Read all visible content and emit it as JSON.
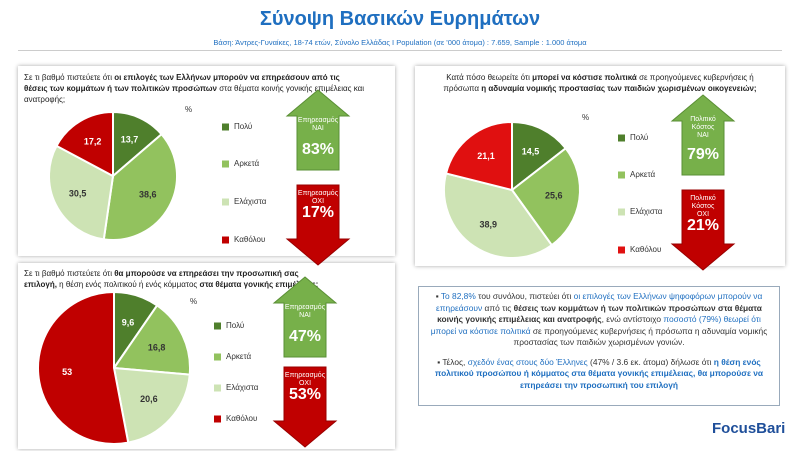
{
  "header": {
    "title": "Σύνοψη Βασικών Ευρημάτων",
    "subtitle": "Βάση: Άντρες-Γυναίκες, 18-74 ετών, Σύνολο Ελλάδας Ι Population (σε '000 άτομα) : 7.659, Sample : 1.000 άτομα"
  },
  "chart_data": [
    {
      "type": "pie",
      "question": [
        "Σε τι βαθμό πιστεύετε ότι ",
        "οι επιλογές των Ελλήνων μπορούν να επηρεάσουν από τις θέσεις των κομμάτων ή των πολιτικών προσώπων",
        " στα θέματα κοινής γονικής επιμέλειας και ανατροφής;"
      ],
      "unit": "%",
      "categories": [
        "Πολύ",
        "Αρκετά",
        "Ελάχιστα",
        "Καθόλου"
      ],
      "values": [
        13.7,
        38.6,
        30.5,
        17.2
      ],
      "value_labels": [
        "13,7",
        "38,6",
        "30,5",
        "17,2"
      ],
      "colors": [
        "#4f7f2c",
        "#92c25e",
        "#cde3b4",
        "#c00000"
      ],
      "yes_label": [
        "Επηρεασμός",
        "ΝΑΙ"
      ],
      "yes_value": "83%",
      "no_label": [
        "Επηρεασμός",
        "ΟΧΙ"
      ],
      "no_value": "17%"
    },
    {
      "type": "pie",
      "question": [
        "Κατά πόσο θεωρείτε ότι ",
        "μπορεί να κόστισε πολιτικά",
        " σε προηγούμενες κυβερνήσεις ή πρόσωπα ",
        "η αδυναμία νομικής προστασίας των παιδιών χωρισμένων οικογενειών;"
      ],
      "unit": "%",
      "categories": [
        "Πολύ",
        "Αρκετά",
        "Ελάχιστα",
        "Καθόλου"
      ],
      "values": [
        14.5,
        25.6,
        38.9,
        21.1
      ],
      "value_labels": [
        "14,5",
        "25,6",
        "38,9",
        "21,1"
      ],
      "colors": [
        "#4f7f2c",
        "#92c25e",
        "#cde3b4",
        "#e01010"
      ],
      "yes_label": [
        "Πολιτικό",
        "Κόστος",
        "ΝΑΙ"
      ],
      "yes_value": "79%",
      "no_label": [
        "Πολιτικό",
        "Κόστος",
        "ΟΧΙ"
      ],
      "no_value": "21%"
    },
    {
      "type": "pie",
      "question": [
        "Σε τι βαθμό πιστεύετε ότι ",
        "θα μπορούσε να επηρεάσει την προσωπική σας επιλογή,",
        " η θέση ενός πολιτικού ή ενός κόμματος ",
        "στα θέματα γονικής επιμέλειας;"
      ],
      "unit": "%",
      "categories": [
        "Πολύ",
        "Αρκετά",
        "Ελάχιστα",
        "Καθόλου"
      ],
      "values": [
        9.6,
        16.8,
        20.6,
        53
      ],
      "value_labels": [
        "9,6",
        "16,8",
        "20,6",
        "53"
      ],
      "colors": [
        "#4f7f2c",
        "#92c25e",
        "#cde3b4",
        "#c00000"
      ],
      "yes_label": [
        "Επηρεασμός",
        "ΝΑΙ"
      ],
      "yes_value": "47%",
      "no_label": [
        "Επηρεασμός",
        "ΟΧΙ"
      ],
      "no_value": "53%"
    }
  ],
  "notes": [
    [
      "Το 82,8%",
      " του συνόλου, πιστεύει ότι ",
      "οι επιλογές των Ελλήνων ψηφοφόρων μπορούν να επηρεάσουν",
      " από τις ",
      "θέσεις των κομμάτων ή των πολιτικών προσώπων στα θέματα κοινής γονικής επιμέλειας και ανατροφής",
      ", ενώ αντίστοιχο ",
      "ποσοστό (79%) θεωρεί ότι μπορεί να κόστισε πολιτικά",
      " σε προηγούμενες κυβερνήσεις ή πρόσωπα η αδυναμία νομικής προστασίας των παιδιών χωρισμένων γονιών."
    ],
    [
      "Τέλος, ",
      "σχεδόν ένας στους δύο Έλληνες",
      " (47% / 3.6 εκ. άτομα) δήλωσε ότι ",
      "η θέση ενός πολιτικού προσώπου ή κόμματος στα θέματα γονικής επιμέλειας, θα μπορούσε να επηρεάσει την προσωπική του επιλογή"
    ]
  ],
  "logo": "FocusBari"
}
